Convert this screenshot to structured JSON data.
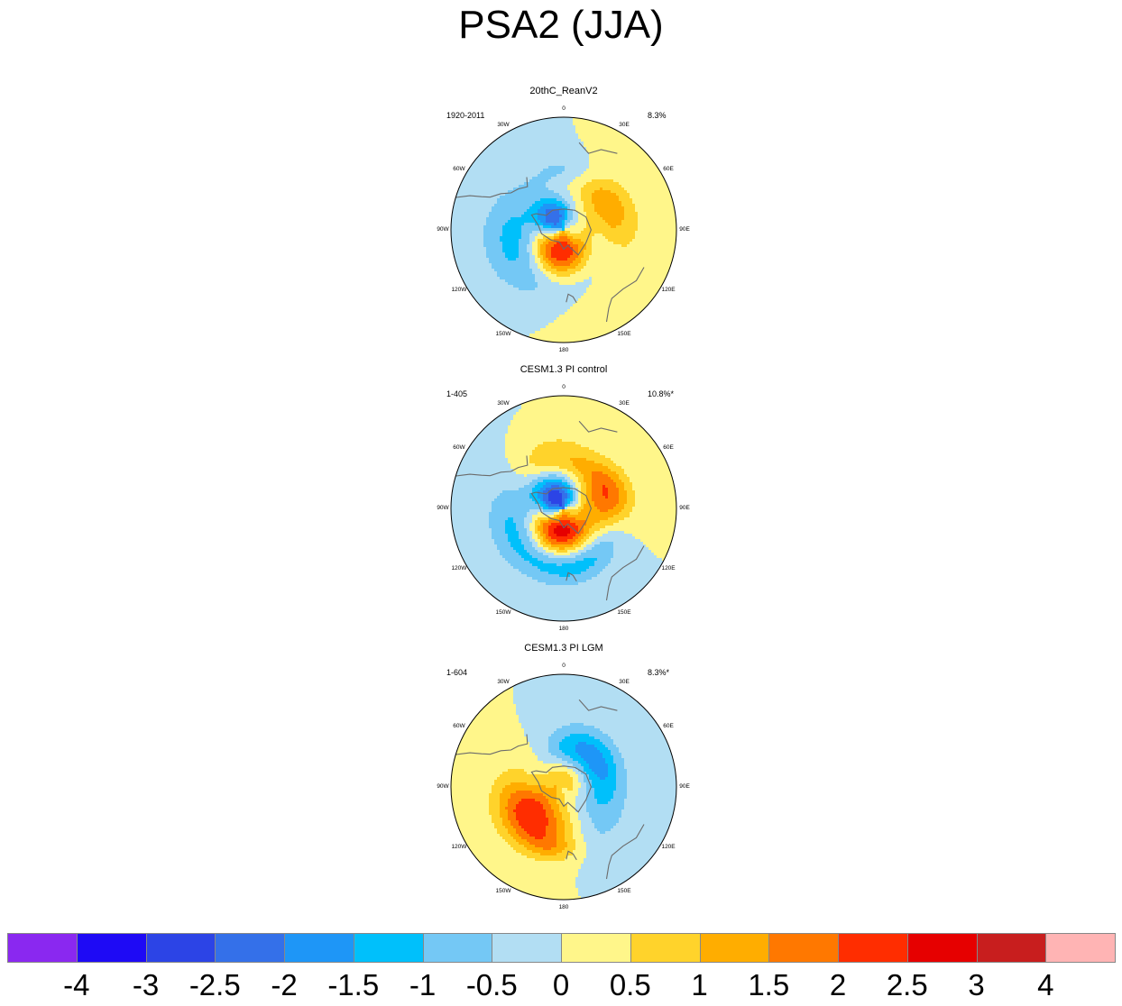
{
  "title": "PSA2 (JJA)",
  "panels": [
    {
      "title": "20thC_ReanV2",
      "period": "1920-2011",
      "variance": "8.3%",
      "blobs": [
        {
          "lon": -170,
          "colat": 15,
          "value": 3.1,
          "sx": 14,
          "sy": 11
        },
        {
          "lon": 130,
          "colat": 32,
          "value": 0.9,
          "sx": 26,
          "sy": 17
        },
        {
          "lon": -110,
          "colat": 32,
          "value": -1.2,
          "sx": 26,
          "sy": 14
        },
        {
          "lon": 150,
          "colat": 25,
          "value": -1.1,
          "sx": 22,
          "sy": 14
        },
        {
          "lon": -40,
          "colat": 10,
          "value": -2.4,
          "sx": 10,
          "sy": 8
        },
        {
          "lon": 60,
          "colat": 30,
          "value": 1.2,
          "sx": 13,
          "sy": 10
        },
        {
          "lon": 0,
          "colat": 38,
          "value": -0.5,
          "sx": 10,
          "sy": 6
        }
      ]
    },
    {
      "title": "CESM1.3 PI control",
      "period": "1-405",
      "variance": "10.8%*",
      "blobs": [
        {
          "lon": -170,
          "colat": 15,
          "value": 3.0,
          "sx": 15,
          "sy": 11
        },
        {
          "lon": -40,
          "colat": 8,
          "value": -3.1,
          "sx": 12,
          "sy": 10
        },
        {
          "lon": 75,
          "colat": 28,
          "value": 2.2,
          "sx": 14,
          "sy": 10
        },
        {
          "lon": -15,
          "colat": 32,
          "value": 1.1,
          "sx": 16,
          "sy": 9
        },
        {
          "lon": -120,
          "colat": 32,
          "value": -1.2,
          "sx": 24,
          "sy": 12
        },
        {
          "lon": 170,
          "colat": 37,
          "value": -1.0,
          "sx": 16,
          "sy": 8
        },
        {
          "lon": 120,
          "colat": 30,
          "value": -0.6,
          "sx": 14,
          "sy": 8
        }
      ]
    },
    {
      "title": "CESM1.3 PI LGM",
      "period": "1-604",
      "variance": "8.3%*",
      "blobs": [
        {
          "lon": -130,
          "colat": 26,
          "value": 2.7,
          "sx": 20,
          "sy": 13
        },
        {
          "lon": 35,
          "colat": 24,
          "value": -1.8,
          "sx": 18,
          "sy": 11
        },
        {
          "lon": 20,
          "colat": 5,
          "value": 1.2,
          "sx": 14,
          "sy": 10
        },
        {
          "lon": -80,
          "colat": 25,
          "value": -0.7,
          "sx": 9,
          "sy": 8
        },
        {
          "lon": 140,
          "colat": 28,
          "value": -0.9,
          "sx": 22,
          "sy": 12
        },
        {
          "lon": -170,
          "colat": 38,
          "value": 0.8,
          "sx": 10,
          "sy": 6
        }
      ]
    }
  ],
  "lon_labels": [
    "0",
    "30E",
    "60E",
    "90E",
    "120E",
    "150E",
    "180",
    "150W",
    "120W",
    "90W",
    "60W",
    "30W"
  ],
  "colorbar": {
    "colors": [
      "#8a28f0",
      "#1e0af5",
      "#2c44e6",
      "#3470e9",
      "#1e96f7",
      "#00c0fb",
      "#74c8f5",
      "#b2def3",
      "#fff68a",
      "#ffd32b",
      "#ffad00",
      "#ff7800",
      "#ff2d00",
      "#e60000",
      "#c81e1e",
      "#ffb4b4"
    ],
    "labels": [
      "-4",
      "-3",
      "-2.5",
      "-2",
      "-1.5",
      "-1",
      "-0.5",
      "0",
      "0.5",
      "1",
      "1.5",
      "2",
      "2.5",
      "3",
      "4"
    ],
    "levels": [
      -4,
      -3,
      -2.5,
      -2,
      -1.5,
      -1,
      -0.5,
      0,
      0.5,
      1,
      1.5,
      2,
      2.5,
      3,
      4
    ]
  }
}
